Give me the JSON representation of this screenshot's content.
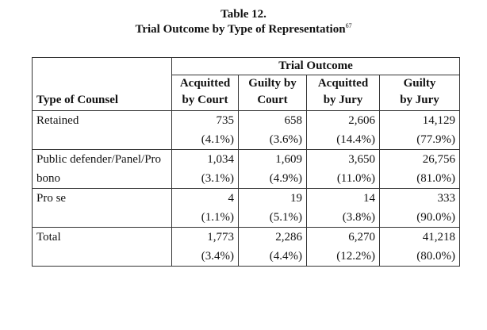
{
  "title": {
    "line1": "Table 12.",
    "line2": "Trial Outcome by Type of Representation",
    "footnote": "67"
  },
  "table": {
    "group_header": "Trial Outcome",
    "row_header": "Type of Counsel",
    "columns": [
      {
        "line1": "Acquitted",
        "line2": "by Court"
      },
      {
        "line1": "Guilty by",
        "line2": "Court"
      },
      {
        "line1": "Acquitted",
        "line2": "by Jury"
      },
      {
        "line1": "Guilty",
        "line2": "by Jury"
      }
    ],
    "rows": [
      {
        "label": "Retained",
        "counts": [
          "735",
          "658",
          "2,606",
          "14,129"
        ],
        "percents": [
          "(4.1%)",
          "(3.6%)",
          "(14.4%)",
          "(77.9%)"
        ]
      },
      {
        "label": "Public defender/Panel/Pro bono",
        "counts": [
          "1,034",
          "1,609",
          "3,650",
          "26,756"
        ],
        "percents": [
          "(3.1%)",
          "(4.9%)",
          "(11.0%)",
          "(81.0%)"
        ]
      },
      {
        "label": "Pro se",
        "counts": [
          "4",
          "19",
          "14",
          "333"
        ],
        "percents": [
          "(1.1%)",
          "(5.1%)",
          "(3.8%)",
          "(90.0%)"
        ]
      },
      {
        "label": "Total",
        "counts": [
          "1,773",
          "2,286",
          "6,270",
          "41,218"
        ],
        "percents": [
          "(3.4%)",
          "(4.4%)",
          "(12.2%)",
          "(80.0%)"
        ]
      }
    ]
  }
}
